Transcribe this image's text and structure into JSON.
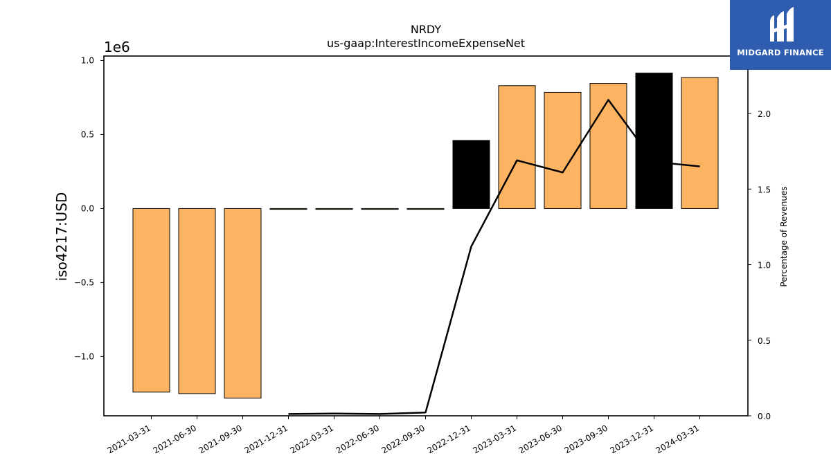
{
  "chart_data": {
    "type": "bar",
    "title": "NRDY",
    "subtitle": "us-gaap:InterestIncomeExpenseNet",
    "ylabel": "iso4217:USD",
    "y_exponent_label": "1e6",
    "y2label": "Percentage of Revenues",
    "categories": [
      "2021-03-31",
      "2021-06-30",
      "2021-09-30",
      "2021-12-31",
      "2022-03-31",
      "2022-06-30",
      "2022-09-30",
      "2022-12-31",
      "2023-03-31",
      "2023-06-30",
      "2023-09-30",
      "2023-12-31",
      "2024-03-31"
    ],
    "series": [
      {
        "type": "bar",
        "axis": "left",
        "values": [
          -1240000,
          -1250000,
          -1280000,
          0,
          0,
          0,
          0,
          460000,
          830000,
          785000,
          845000,
          915000,
          885000
        ],
        "colors": [
          "#fdb462",
          "#fdb462",
          "#fdb462",
          "#fdb462",
          "#fdb462",
          "#fdb462",
          "#fdb462",
          "#000000",
          "#fdb462",
          "#fdb462",
          "#fdb462",
          "#000000",
          "#fdb462"
        ]
      },
      {
        "type": "line",
        "axis": "right",
        "color": "#000000",
        "values": [
          null,
          null,
          null,
          0.012,
          0.015,
          0.012,
          0.022,
          1.12,
          1.69,
          1.61,
          2.09,
          1.68,
          1.65
        ]
      }
    ],
    "ylim": [
      -1400000,
      1030000
    ],
    "yticks": [
      -1000000,
      -500000,
      0,
      500000,
      1000000
    ],
    "ytick_labels": [
      "−1.0",
      "−0.5",
      "0.0",
      "0.5",
      "1.0"
    ],
    "y2lim": [
      0,
      2.38
    ],
    "y2ticks": [
      0,
      0.5,
      1.0,
      1.5,
      2.0
    ],
    "y2tick_labels": [
      "0.0",
      "0.5",
      "1.0",
      "1.5",
      "2.0"
    ],
    "grid": false,
    "legend": "none"
  },
  "logo": {
    "text": "MIDGARD FINANCE",
    "background": "#2e5cae"
  }
}
